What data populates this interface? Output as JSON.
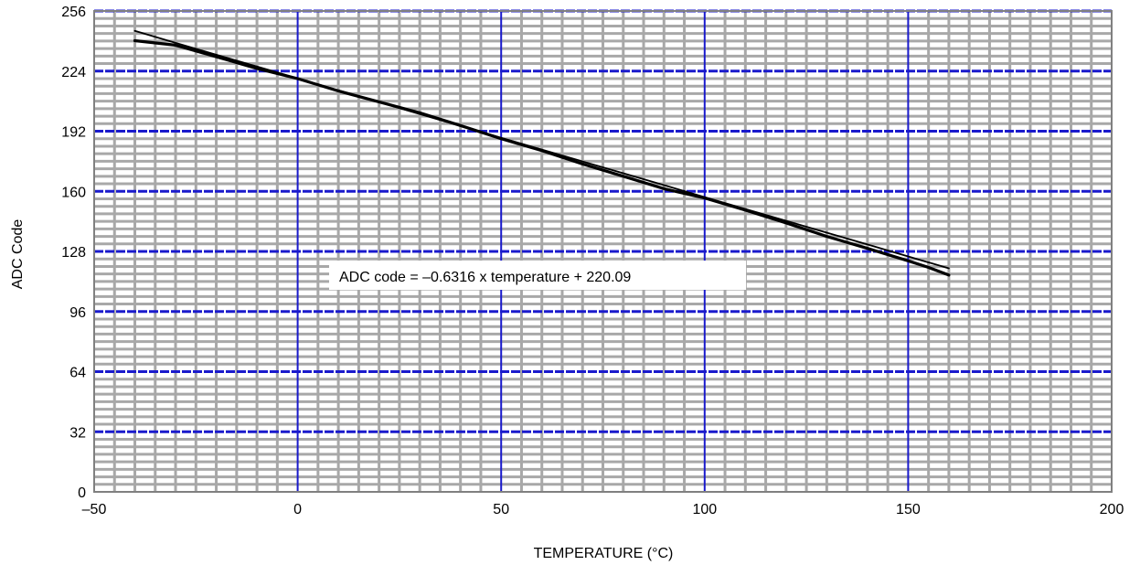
{
  "chart_data": {
    "type": "line",
    "title": "",
    "xlabel": "TEMPERATURE (°C)",
    "ylabel": "ADC Code",
    "xlim": [
      -50,
      200
    ],
    "ylim": [
      0,
      256
    ],
    "x_ticks": [
      -50,
      0,
      50,
      100,
      150,
      200
    ],
    "x_tick_labels": [
      "–50",
      "0",
      "50",
      "100",
      "150",
      "200"
    ],
    "y_ticks": [
      0,
      32,
      64,
      96,
      128,
      160,
      192,
      224,
      256
    ],
    "y_tick_labels": [
      "0",
      "32",
      "64",
      "96",
      "128",
      "160",
      "192",
      "224",
      "256"
    ],
    "x_minor_step": 5,
    "y_minor_step": 4,
    "grid": true,
    "colors": {
      "major_grid": "#1a1acc",
      "minor_grid": "#a8a8a8",
      "series": "#000000",
      "frame": "#808080"
    },
    "series": [
      {
        "x": [
          -40,
          -30,
          -20,
          -10,
          0,
          10,
          20,
          30,
          40,
          50,
          60,
          70,
          80,
          90,
          100,
          110,
          120,
          130,
          140,
          150,
          155,
          160
        ],
        "values": [
          240.2,
          237.8,
          231.6,
          225.4,
          220.0,
          213.4,
          207.6,
          201.8,
          195.0,
          188.0,
          181.7,
          174.6,
          168.0,
          161.4,
          156.4,
          150.0,
          143.2,
          136.0,
          129.6,
          123.0,
          119.5,
          115.4
        ]
      },
      {
        "x": [
          -40,
          -30,
          -20,
          -10,
          0,
          10,
          20,
          30,
          40,
          50,
          60,
          70,
          80,
          90,
          100,
          110,
          120,
          130,
          140,
          150,
          160
        ],
        "values": [
          245.4,
          239.0,
          232.7,
          226.4,
          220.1,
          213.8,
          207.5,
          201.1,
          194.8,
          188.5,
          182.2,
          175.9,
          169.6,
          163.3,
          156.9,
          150.6,
          144.3,
          138.0,
          131.7,
          125.3,
          119.0
        ]
      }
    ],
    "annotations": [
      {
        "text": "ADC code = –0.6316 x temperature + 220.09"
      }
    ]
  }
}
